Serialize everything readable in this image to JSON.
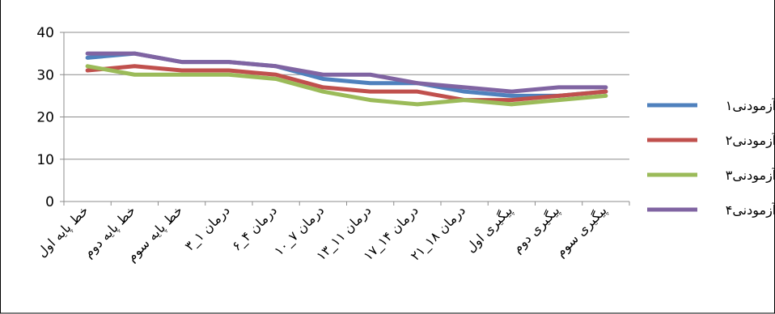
{
  "chart_data": {
    "type": "line",
    "title": "",
    "xlabel": "",
    "ylabel": "",
    "ylim": [
      0,
      40
    ],
    "yticks": [
      0,
      10,
      20,
      30,
      40
    ],
    "grid": "horizontal",
    "legend_position": "right",
    "categories": [
      "خط پایه اول",
      "خط پایه دوم",
      "خط پایه سوم",
      "درمان ۱_۳",
      "درمان ۴_۶",
      "درمان ۷_۱۰",
      "درمان ۱۱_۱۳",
      "درمان ۱۴_۱۷",
      "درمان ۱۸_۲۱",
      "پیگیری اول",
      "پیگیری دوم",
      "پیگیری سوم"
    ],
    "series": [
      {
        "name": "آزمودنی۱",
        "color": "#4f81bd",
        "values": [
          34,
          35,
          33,
          33,
          32,
          29,
          28,
          28,
          26,
          25,
          25,
          26
        ]
      },
      {
        "name": "آزمودنی۲",
        "color": "#c0504d",
        "values": [
          31,
          32,
          31,
          31,
          30,
          27,
          26,
          26,
          24,
          24,
          25,
          26
        ]
      },
      {
        "name": "آزمودنی۳",
        "color": "#9bbb59",
        "values": [
          32,
          30,
          30,
          30,
          29,
          26,
          24,
          23,
          24,
          23,
          24,
          25
        ]
      },
      {
        "name": "آزمودنی۴",
        "color": "#8064a2",
        "values": [
          35,
          35,
          33,
          33,
          32,
          30,
          30,
          28,
          27,
          26,
          27,
          27
        ]
      }
    ]
  }
}
